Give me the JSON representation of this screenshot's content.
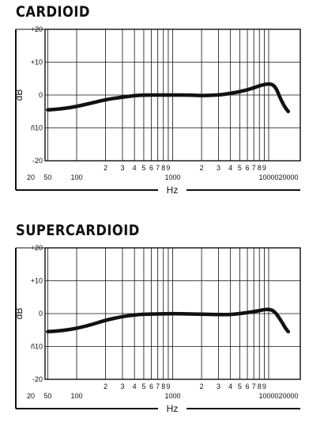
{
  "chart_data": [
    {
      "type": "line",
      "title": "CARDIOID",
      "xlabel": "Hz",
      "ylabel": "dB",
      "x_scale": "log",
      "xlim": [
        20,
        20000
      ],
      "ylim": [
        -20,
        20
      ],
      "grid": true,
      "y_ticks": [
        "+20",
        "+10",
        "0",
        "ñ10",
        "-20"
      ],
      "y_tick_values": [
        20,
        10,
        0,
        -10,
        -20
      ],
      "x_tick_labels": [
        "20",
        "50",
        "100",
        "2",
        "3",
        "4",
        "5",
        "6",
        "7",
        "8",
        "9",
        "1000",
        "2",
        "3",
        "4",
        "5",
        "6",
        "7",
        "8",
        "9",
        "10000",
        "20000"
      ],
      "x_tick_values": [
        20,
        50,
        100,
        200,
        300,
        400,
        500,
        600,
        700,
        800,
        900,
        1000,
        2000,
        3000,
        4000,
        5000,
        6000,
        7000,
        8000,
        9000,
        10000,
        20000
      ],
      "series": [
        {
          "x": [
            50,
            70,
            100,
            150,
            200,
            300,
            400,
            500,
            700,
            1000,
            1500,
            2000,
            3000,
            4000,
            5000,
            6000,
            7000,
            8000,
            9000,
            10000,
            11000,
            12000,
            13000,
            14000,
            15000,
            16000
          ],
          "y": [
            -4.5,
            -4.2,
            -3.5,
            -2.3,
            -1.4,
            -0.6,
            -0.2,
            0,
            0,
            0,
            0,
            -0.2,
            0,
            0.5,
            1.0,
            1.6,
            2.2,
            2.8,
            3.2,
            3.4,
            3.2,
            2.0,
            -0.5,
            -2.5,
            -4.0,
            -5.0
          ]
        }
      ]
    },
    {
      "type": "line",
      "title": "SUPERCARDIOID",
      "xlabel": "Hz",
      "ylabel": "dB",
      "x_scale": "log",
      "xlim": [
        20,
        20000
      ],
      "ylim": [
        -20,
        20
      ],
      "grid": true,
      "y_ticks": [
        "+20",
        "+10",
        "0",
        "ñ10",
        "-20"
      ],
      "y_tick_values": [
        20,
        10,
        0,
        -10,
        -20
      ],
      "x_tick_labels": [
        "20",
        "50",
        "100",
        "2",
        "3",
        "4",
        "5",
        "6",
        "7",
        "8",
        "9",
        "1000",
        "2",
        "3",
        "4",
        "5",
        "6",
        "7",
        "8",
        "9",
        "10000",
        "20000"
      ],
      "x_tick_values": [
        20,
        50,
        100,
        200,
        300,
        400,
        500,
        600,
        700,
        800,
        900,
        1000,
        2000,
        3000,
        4000,
        5000,
        6000,
        7000,
        8000,
        9000,
        10000,
        20000
      ],
      "series": [
        {
          "x": [
            50,
            70,
            100,
            150,
            200,
            300,
            400,
            500,
            700,
            1000,
            1500,
            2000,
            3000,
            4000,
            5000,
            6000,
            7000,
            8000,
            9000,
            10000,
            11000,
            12000,
            13000,
            14000,
            15000,
            16000
          ],
          "y": [
            -5.5,
            -5.2,
            -4.5,
            -3.2,
            -2.0,
            -0.9,
            -0.4,
            -0.2,
            -0.1,
            0,
            -0.1,
            -0.2,
            -0.3,
            -0.3,
            0,
            0.3,
            0.6,
            0.9,
            1.2,
            1.3,
            1.0,
            0.0,
            -1.5,
            -3.0,
            -4.5,
            -5.5
          ]
        }
      ]
    }
  ]
}
